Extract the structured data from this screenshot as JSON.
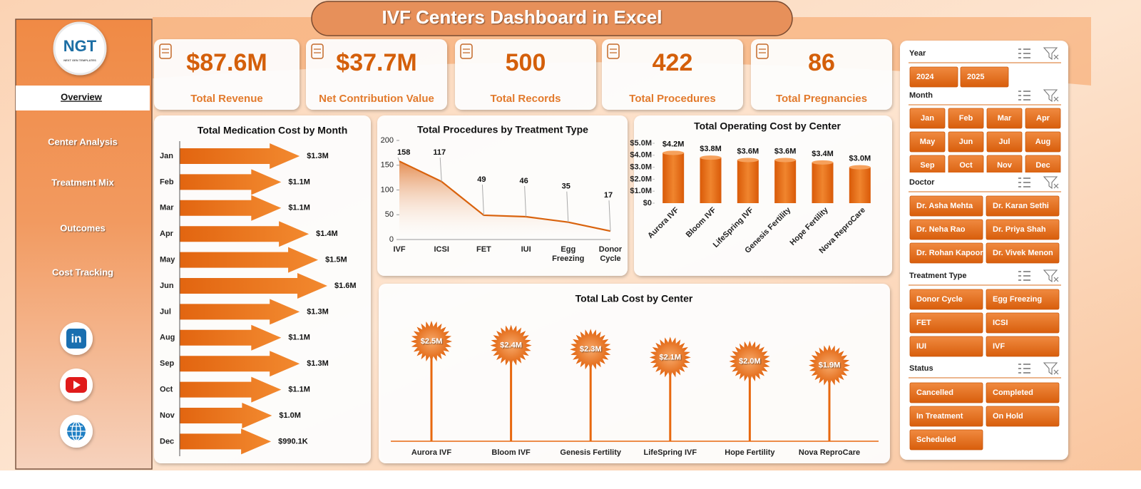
{
  "header": {
    "title": "IVF Centers Dashboard in Excel"
  },
  "sidebar": {
    "logo": "NGT",
    "logo_subtitle": "NEXT GEN TEMPLATES",
    "nav": [
      "Overview",
      "Center Analysis",
      "Treatment Mix",
      "Outcomes",
      "Cost Tracking"
    ],
    "linkedin": "in"
  },
  "kpis": [
    {
      "value": "$87.6M",
      "label": "Total Revenue"
    },
    {
      "value": "$37.7M",
      "label": "Net Contribution Value"
    },
    {
      "value": "500",
      "label": "Total Records"
    },
    {
      "value": "422",
      "label": "Total Procedures"
    },
    {
      "value": "86",
      "label": "Total Pregnancies"
    }
  ],
  "chart_data": [
    {
      "type": "arrow-bar",
      "title": "Total Medication Cost by Month",
      "categories": [
        "Jan",
        "Feb",
        "Mar",
        "Apr",
        "May",
        "Jun",
        "Jul",
        "Aug",
        "Sep",
        "Oct",
        "Nov",
        "Dec"
      ],
      "values": [
        1300000,
        1100000,
        1100000,
        1400000,
        1500000,
        1600000,
        1300000,
        1100000,
        1300000,
        1100000,
        1000000,
        990100
      ],
      "value_labels": [
        "$1.3M",
        "$1.1M",
        "$1.1M",
        "$1.4M",
        "$1.5M",
        "$1.6M",
        "$1.3M",
        "$1.1M",
        "$1.3M",
        "$1.1M",
        "$1.0M",
        "$990.1K"
      ],
      "color": "#e8680f"
    },
    {
      "type": "area",
      "title": "Total Procedures by Treatment Type",
      "categories": [
        "IVF",
        "ICSI",
        "FET",
        "IUI",
        "Egg Freezing",
        "Donor Cycle"
      ],
      "values": [
        158,
        117,
        49,
        46,
        35,
        17
      ],
      "ylim": [
        0,
        200
      ],
      "yticks": [
        0,
        50,
        100,
        150,
        200
      ],
      "color": "#d9620c"
    },
    {
      "type": "bar",
      "title": "Total Operating Cost by Center",
      "categories": [
        "Aurora IVF",
        "Bloom IVF",
        "LifeSpring IVF",
        "Genesis Fertility",
        "Hope Fertility",
        "Nova ReproCare"
      ],
      "values": [
        4200000,
        3800000,
        3600000,
        3600000,
        3400000,
        3000000
      ],
      "value_labels": [
        "$4.2M",
        "$3.8M",
        "$3.6M",
        "$3.6M",
        "$3.4M",
        "$3.0M"
      ],
      "ylim": [
        0,
        5000000
      ],
      "yticks": [
        {
          "value": 0,
          "label": "$0"
        },
        {
          "value": 1000000,
          "label": "$1.0M"
        },
        {
          "value": 2000000,
          "label": "$2.0M"
        },
        {
          "value": 3000000,
          "label": "$3.0M"
        },
        {
          "value": 4000000,
          "label": "$4.0M"
        },
        {
          "value": 5000000,
          "label": "$5.0M"
        }
      ],
      "color": "#e8680f"
    },
    {
      "type": "lollipop",
      "title": "Total Lab Cost by Center",
      "categories": [
        "Aurora IVF",
        "Bloom IVF",
        "Genesis Fertility",
        "LifeSpring IVF",
        "Hope Fertility",
        "Nova ReproCare"
      ],
      "values": [
        2500000,
        2400000,
        2300000,
        2100000,
        2000000,
        1900000
      ],
      "value_labels": [
        "$2.5M",
        "$2.4M",
        "$2.3M",
        "$2.1M",
        "$2.0M",
        "$1.9M"
      ],
      "color": "#e8680f"
    }
  ],
  "slicers": [
    {
      "title": "Year",
      "items": [
        "2024",
        "2025"
      ]
    },
    {
      "title": "Month",
      "items": [
        "Jan",
        "Feb",
        "Mar",
        "Apr",
        "May",
        "Jun",
        "Jul",
        "Aug",
        "Sep",
        "Oct",
        "Nov",
        "Dec"
      ]
    },
    {
      "title": "Doctor",
      "items": [
        "Dr. Asha Mehta",
        "Dr. Karan Sethi",
        "Dr. Neha Rao",
        "Dr. Priya Shah",
        "Dr. Rohan Kapoor",
        "Dr. Vivek Menon"
      ]
    },
    {
      "title": "Treatment Type",
      "items": [
        "Donor Cycle",
        "Egg Freezing",
        "FET",
        "ICSI",
        "IUI",
        "IVF"
      ]
    },
    {
      "title": "Status",
      "items": [
        "Cancelled",
        "Completed",
        "In Treatment",
        "On Hold",
        "Scheduled"
      ]
    }
  ]
}
